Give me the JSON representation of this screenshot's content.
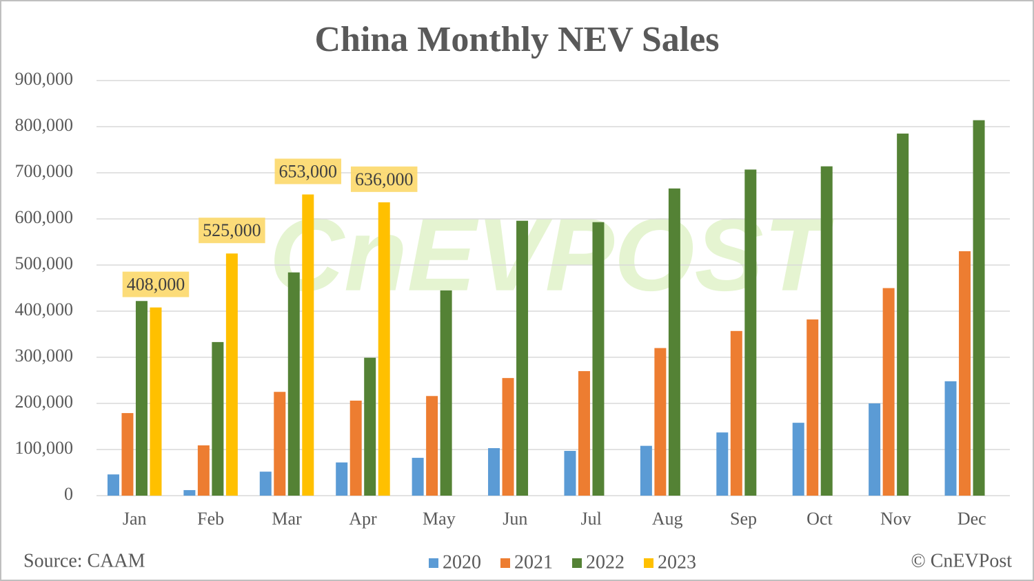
{
  "chart_data": {
    "type": "bar",
    "title": "China Monthly NEV Sales",
    "watermark": "CnEVPOST",
    "source": "Source: CAAM",
    "credit": "© CnEVPost",
    "categories": [
      "Jan",
      "Feb",
      "Mar",
      "Apr",
      "May",
      "Jun",
      "Jul",
      "Aug",
      "Sep",
      "Oct",
      "Nov",
      "Dec"
    ],
    "series": [
      {
        "name": "2020",
        "color": "#5b9bd5",
        "values": [
          46000,
          12000,
          52000,
          72000,
          82000,
          103000,
          97000,
          108000,
          137000,
          158000,
          200000,
          248000
        ]
      },
      {
        "name": "2021",
        "color": "#ed7d31",
        "values": [
          179000,
          109000,
          225000,
          206000,
          216000,
          255000,
          270000,
          320000,
          357000,
          382000,
          450000,
          530000
        ]
      },
      {
        "name": "2022",
        "color": "#548235",
        "values": [
          422000,
          333000,
          484000,
          299000,
          445000,
          596000,
          593000,
          666000,
          707000,
          714000,
          785000,
          814000
        ]
      },
      {
        "name": "2023",
        "color": "#ffc000",
        "values": [
          408000,
          525000,
          653000,
          636000,
          null,
          null,
          null,
          null,
          null,
          null,
          null,
          null
        ],
        "value_labels": [
          "408,000",
          "525,000",
          "653,000",
          "636,000",
          null,
          null,
          null,
          null,
          null,
          null,
          null,
          null
        ]
      }
    ],
    "ylim": [
      0,
      900000
    ],
    "yticks": [
      0,
      {
        "value": 100000,
        "label": "100,000"
      },
      {
        "value": 200000,
        "label": "200,000"
      },
      {
        "value": 300000,
        "label": "300,000"
      },
      {
        "value": 400000,
        "label": "400,000"
      },
      {
        "value": 500000,
        "label": "500,000"
      },
      {
        "value": 600000,
        "label": "600,000"
      },
      {
        "value": 700000,
        "label": "700,000"
      },
      {
        "value": 800000,
        "label": "800,000"
      },
      {
        "value": 900000,
        "label": "900,000"
      }
    ],
    "grid": true,
    "legend": "bottom"
  }
}
